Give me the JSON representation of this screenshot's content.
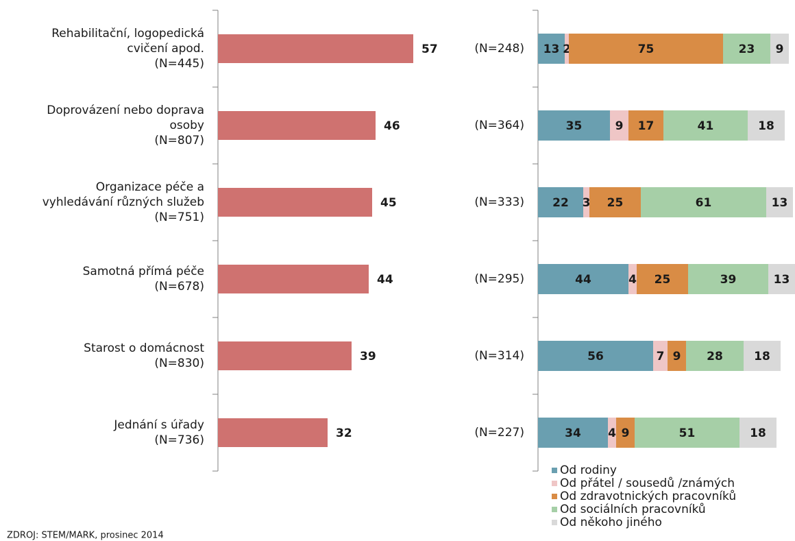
{
  "chart_data": [
    {
      "type": "bar",
      "categories": [
        [
          "Rehabilitační, logopedická",
          "cvičení apod.",
          "(N=445)"
        ],
        [
          "Doprovázení nebo doprava",
          "osoby",
          "(N=807)"
        ],
        [
          "Organizace péče a",
          "vyhledávání různých služeb",
          "(N=751)"
        ],
        [
          "Samotná přímá péče",
          "(N=678)"
        ],
        [
          "Starost o domácnost",
          "(N=830)"
        ],
        [
          "Jednání s úřady",
          "(N=736)"
        ]
      ],
      "values": [
        57,
        46,
        45,
        44,
        39,
        32
      ],
      "color": "#cf7270",
      "xlim": [
        0,
        60
      ]
    },
    {
      "type": "stacked_bar",
      "categories": [
        "(N=248)",
        "(N=364)",
        "(N=333)",
        "(N=295)",
        "(N=314)",
        "(N=227)"
      ],
      "series": [
        {
          "name": "Od rodiny",
          "color": "#6a9fb0",
          "values": [
            13,
            35,
            22,
            44,
            56,
            34
          ]
        },
        {
          "name": "Od přátel / sousedů /známých",
          "color": "#efc6c6",
          "values": [
            2,
            9,
            3,
            4,
            7,
            4
          ]
        },
        {
          "name": "Od zdravotnických pracovníků",
          "color": "#d98c45",
          "values": [
            75,
            17,
            25,
            25,
            9,
            9
          ]
        },
        {
          "name": "Od sociálních pracovníků",
          "color": "#a6cfa7",
          "values": [
            23,
            41,
            61,
            39,
            28,
            51
          ]
        },
        {
          "name": "Od někoho jiného",
          "color": "#d9d9d9",
          "values": [
            9,
            18,
            13,
            13,
            18,
            18
          ]
        }
      ],
      "xlim": [
        0,
        125
      ]
    }
  ],
  "source": "ZDROJ: STEM/MARK, prosinec 2014"
}
